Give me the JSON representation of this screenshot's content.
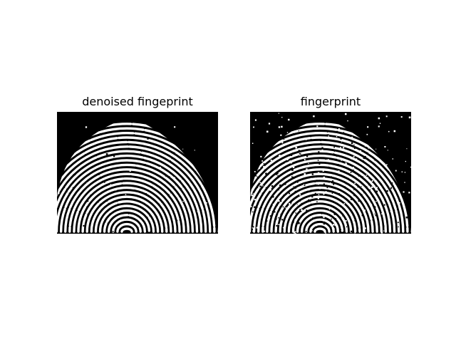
{
  "figure": {
    "background_color": "#ffffff",
    "panels": [
      {
        "title": "denoised fingeprint",
        "image": "fingerprint",
        "variant": "denoised",
        "foreground_color": "#ffffff",
        "background_color": "#000000"
      },
      {
        "title": "fingerprint",
        "image": "fingerprint",
        "variant": "noisy",
        "foreground_color": "#ffffff",
        "background_color": "#000000"
      }
    ]
  }
}
